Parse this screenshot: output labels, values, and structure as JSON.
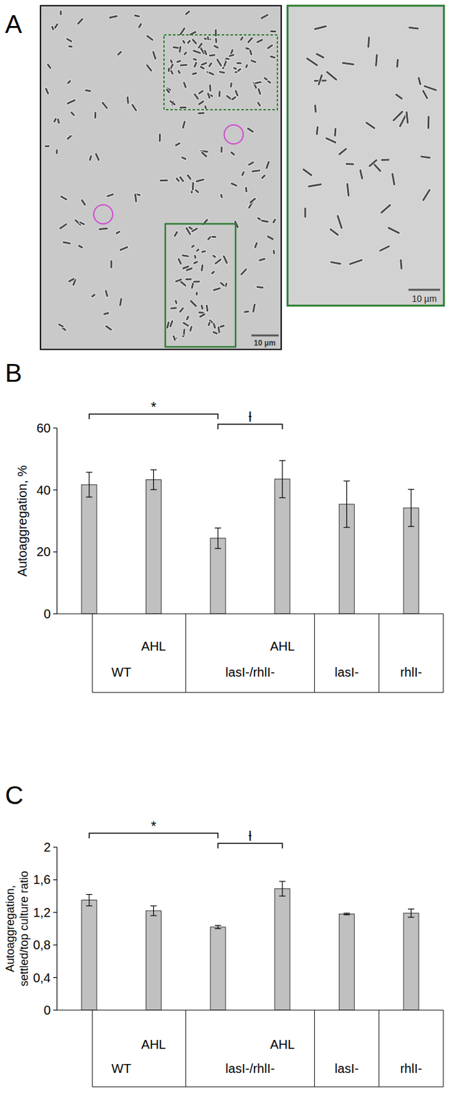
{
  "image_panel": {
    "label": "A",
    "scale_bars": [
      "10 µm",
      "10 µm"
    ]
  },
  "chart_data": [
    {
      "type": "bar",
      "label": "B",
      "y_label": "Autoaggregation, %",
      "categories": [
        null,
        "AHL",
        null,
        "AHL",
        null,
        null
      ],
      "groups": [
        {
          "label": "WT",
          "span": 2
        },
        {
          "label": "lasI-/rhlI-",
          "span": 2
        },
        {
          "label": "lasI-",
          "span": 1
        },
        {
          "label": "rhlI-",
          "span": 1
        }
      ],
      "values": [
        41.7,
        43.3,
        24.4,
        43.5,
        35.4,
        34.2
      ],
      "errors": [
        4.0,
        3.2,
        3.3,
        6.0,
        7.5,
        6.0
      ],
      "color": "#c0c0c0",
      "ylim": [
        0,
        60
      ],
      "yticks": [
        0,
        20,
        40,
        60
      ],
      "annotations": [
        {
          "text": "*",
          "from": 0,
          "to": 2
        },
        {
          "text": "ƚ",
          "from": 2,
          "to": 3
        }
      ]
    },
    {
      "type": "bar",
      "label": "C",
      "y_label": "Autoaggregation, settled/top culture ratio",
      "categories": [
        null,
        "AHL",
        null,
        "AHL",
        null,
        null
      ],
      "groups": [
        {
          "label": "WT",
          "span": 2
        },
        {
          "label": "lasI-/rhlI-",
          "span": 2
        },
        {
          "label": "lasI-",
          "span": 1
        },
        {
          "label": "rhlI-",
          "span": 1
        }
      ],
      "values": [
        1.35,
        1.22,
        1.02,
        1.49,
        1.18,
        1.19
      ],
      "errors": [
        0.07,
        0.06,
        0.02,
        0.09,
        0.01,
        0.05
      ],
      "color": "#c0c0c0",
      "ylim": [
        0,
        2
      ],
      "yticks": [
        0,
        {
          "value": 0.4,
          "label": "0,4"
        },
        {
          "value": 0.8,
          "label": "0,8"
        },
        {
          "value": 1.2,
          "label": "1,2"
        },
        {
          "value": 1.6,
          "label": "1,6"
        },
        2
      ],
      "annotations": [
        {
          "text": "*",
          "from": 0,
          "to": 2
        },
        {
          "text": "ƚ",
          "from": 2,
          "to": 3
        }
      ]
    }
  ]
}
